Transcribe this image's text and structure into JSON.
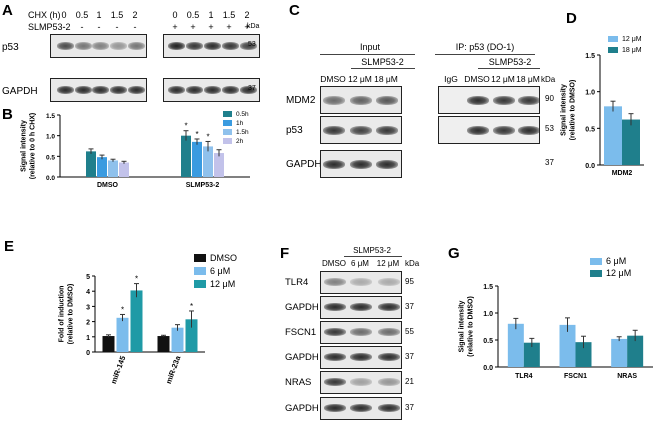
{
  "panels": {
    "A": {
      "letter": "A",
      "row_labels": [
        "CHX (h)",
        "SLMP53-2"
      ],
      "chx_values": [
        "0",
        "0.5",
        "1",
        "1.5",
        "2",
        "0",
        "0.5",
        "1",
        "1.5",
        "2"
      ],
      "slmp_values": [
        "-",
        "-",
        "-",
        "-",
        "-",
        "+",
        "+",
        "+",
        "+",
        "+"
      ],
      "kda": "kDa",
      "blots": [
        {
          "name": "p53",
          "kda": "53",
          "intensity": [
            0.75,
            0.55,
            0.5,
            0.4,
            0.55,
            0.95,
            0.85,
            0.9,
            0.85,
            0.8
          ]
        },
        {
          "name": "GAPDH",
          "kda": "37",
          "intensity": [
            0.9,
            0.9,
            0.9,
            0.9,
            0.9,
            0.9,
            0.9,
            0.9,
            0.9,
            0.9
          ]
        }
      ]
    },
    "C": {
      "letter": "C",
      "input_label": "Input",
      "ip_label": "IP: p53 (DO-1)",
      "treatment_label": "SLMP53-2",
      "input_lanes": [
        "DMSO",
        "12 μM",
        "18 μM"
      ],
      "ip_lanes": [
        "IgG",
        "DMSO",
        "12 μM",
        "18 μM"
      ],
      "kda": "kDa",
      "blots": [
        {
          "name": "MDM2",
          "kda": "90",
          "input": [
            0.6,
            0.65,
            0.7
          ],
          "ip": [
            0.0,
            0.9,
            0.85,
            0.85
          ]
        },
        {
          "name": "p53",
          "kda": "53",
          "input": [
            0.85,
            0.8,
            0.85
          ],
          "ip": [
            0.0,
            0.9,
            0.85,
            0.9
          ]
        },
        {
          "name": "GAPDH",
          "kda": "37",
          "input": [
            0.9,
            0.9,
            0.9
          ],
          "ip": []
        }
      ]
    },
    "F": {
      "letter": "F",
      "treatment_label": "SLMP53-2",
      "lanes": [
        "DMSO",
        "6 μM",
        "12 μM"
      ],
      "kda": "kDa",
      "blots": [
        {
          "name": "TLR4",
          "kda": "95",
          "intensity": [
            0.5,
            0.3,
            0.3
          ]
        },
        {
          "name": "GAPDH",
          "kda": "37",
          "intensity": [
            0.9,
            0.9,
            0.9
          ]
        },
        {
          "name": "FSCN1",
          "kda": "55",
          "intensity": [
            0.85,
            0.6,
            0.6
          ]
        },
        {
          "name": "GAPDH",
          "kda": "37",
          "intensity": [
            0.9,
            0.9,
            0.9
          ]
        },
        {
          "name": "NRAS",
          "kda": "21",
          "intensity": [
            0.85,
            0.35,
            0.4
          ]
        },
        {
          "name": "GAPDH",
          "kda": "37",
          "intensity": [
            0.9,
            0.9,
            0.9
          ]
        }
      ]
    }
  },
  "chart_data": [
    {
      "id": "B",
      "type": "bar",
      "panel_letter": "B",
      "categories": [
        "DMSO",
        "SLMP53-2"
      ],
      "series": [
        {
          "name": "0.5h",
          "color": "#1f7f8c",
          "values": [
            0.62,
            1.0
          ],
          "errors": [
            0.06,
            0.12
          ]
        },
        {
          "name": "1h",
          "color": "#3a9be0",
          "values": [
            0.48,
            0.85
          ],
          "errors": [
            0.05,
            0.07
          ]
        },
        {
          "name": "1.5h",
          "color": "#8fc1ec",
          "values": [
            0.4,
            0.74
          ],
          "errors": [
            0.03,
            0.12
          ]
        },
        {
          "name": "2h",
          "color": "#c2c2ea",
          "values": [
            0.35,
            0.58
          ],
          "errors": [
            0.03,
            0.08
          ]
        }
      ],
      "stars": [
        [
          false,
          true
        ],
        [
          false,
          true
        ],
        [
          false,
          true
        ],
        [
          false,
          false
        ]
      ],
      "ylabel": "Signal intensity\n(relative to 0 h CHX)",
      "ylim": [
        0,
        1.5
      ],
      "yticks": [
        "0.0",
        "0.5",
        "1.0",
        "1.5"
      ],
      "legend_position": "top-right"
    },
    {
      "id": "D",
      "type": "bar",
      "panel_letter": "D",
      "categories": [
        "MDM2"
      ],
      "series": [
        {
          "name": "12 μM",
          "color": "#7bbcec",
          "values": [
            0.8
          ],
          "errors": [
            0.07
          ]
        },
        {
          "name": "18 μM",
          "color": "#1f7f8c",
          "values": [
            0.62
          ],
          "errors": [
            0.08
          ]
        }
      ],
      "ylabel": "Signal intensity\n(relative to DMSO)",
      "ylim": [
        0,
        1.5
      ],
      "yticks": [
        "0.0",
        "0.5",
        "1.0",
        "1.5"
      ],
      "legend_position": "top-right"
    },
    {
      "id": "E",
      "type": "bar",
      "panel_letter": "E",
      "categories": [
        "miR-145",
        "miR-23a"
      ],
      "series": [
        {
          "name": "DMSO",
          "color": "#111111",
          "values": [
            1.05,
            1.05
          ],
          "errors": [
            0.08,
            0.05
          ]
        },
        {
          "name": "6 μM",
          "color": "#7bbcec",
          "values": [
            2.25,
            1.6
          ],
          "errors": [
            0.22,
            0.2
          ]
        },
        {
          "name": "12 μM",
          "color": "#1f9aa6",
          "values": [
            4.05,
            2.15
          ],
          "errors": [
            0.45,
            0.55
          ]
        }
      ],
      "stars": [
        [
          false,
          false
        ],
        [
          true,
          false
        ],
        [
          true,
          true
        ]
      ],
      "ylabel": "Fold of induction\n(relative to DMSO)",
      "ylim": [
        0,
        5
      ],
      "yticks": [
        "0",
        "1",
        "2",
        "3",
        "4",
        "5"
      ],
      "legend_position": "top-right"
    },
    {
      "id": "G",
      "type": "bar",
      "panel_letter": "G",
      "categories": [
        "TLR4",
        "FSCN1",
        "NRAS"
      ],
      "series": [
        {
          "name": "6 μM",
          "color": "#7bbcec",
          "values": [
            0.8,
            0.78,
            0.52
          ],
          "errors": [
            0.1,
            0.13,
            0.04
          ]
        },
        {
          "name": "12 μM",
          "color": "#1f7f8c",
          "values": [
            0.45,
            0.46,
            0.58
          ],
          "errors": [
            0.08,
            0.11,
            0.1
          ]
        }
      ],
      "ylabel": "Signal intensity\n(relative to DMSO)",
      "ylim": [
        0,
        1.5
      ],
      "yticks": [
        "0.0",
        "0.5",
        "1.0",
        "1.5"
      ],
      "legend_position": "top-right"
    }
  ]
}
